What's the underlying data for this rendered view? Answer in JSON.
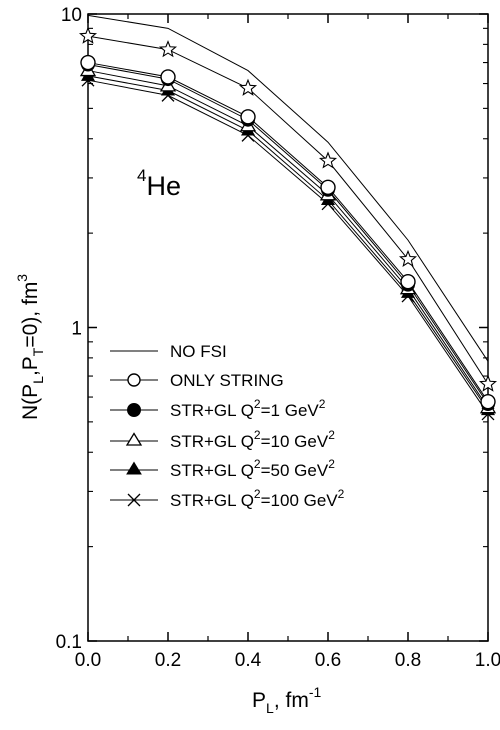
{
  "chart_data": {
    "type": "line",
    "x": [
      0.0,
      0.2,
      0.4,
      0.6,
      0.8,
      1.0
    ],
    "xlim": [
      0.0,
      1.0
    ],
    "ylim": [
      0.1,
      10
    ],
    "yscale": "log",
    "x_ticks": [
      "0.0",
      "0.2",
      "0.4",
      "0.6",
      "0.8",
      "1.0"
    ],
    "y_ticks": [
      "0.1",
      "1",
      "10"
    ],
    "xlabel": {
      "main": "P",
      "sub": "L",
      "tail": ", fm",
      "sup": "-1"
    },
    "ylabel": {
      "p1": "N(P",
      "s1": "L",
      "p2": ",P",
      "s2": "T",
      "p3": "=0), fm",
      "sup": "3"
    },
    "annotation": {
      "sup": "4",
      "text": "He"
    },
    "legend_position": "bottom-left",
    "series": [
      {
        "label": {
          "text": "NO FSI",
          "sup": "",
          "tail": ""
        },
        "marker": "none",
        "values": [
          9.9,
          9.0,
          6.6,
          3.9,
          1.9,
          0.78
        ]
      },
      {
        "label": {
          "text": "ONLY STRING",
          "sup": "",
          "tail": ""
        },
        "marker": "open-circle",
        "values": [
          7.0,
          6.3,
          4.7,
          2.8,
          1.4,
          0.58
        ]
      },
      {
        "label": {
          "text": "STR+GL Q",
          "sup": "2",
          "tail": "=1 GeV",
          "sup2": "2"
        },
        "marker": "filled-circle",
        "values": [
          6.9,
          6.2,
          4.6,
          2.75,
          1.37,
          0.57
        ]
      },
      {
        "label": {
          "text": "STR+GL Q",
          "sup": "2",
          "tail": "=10 GeV",
          "sup2": "2"
        },
        "marker": "open-triangle",
        "values": [
          6.6,
          5.9,
          4.4,
          2.65,
          1.33,
          0.555
        ]
      },
      {
        "label": {
          "text": "STR+GL Q",
          "sup": "2",
          "tail": "=50 GeV",
          "sup2": "2"
        },
        "marker": "filled-triangle",
        "values": [
          6.35,
          5.7,
          4.25,
          2.55,
          1.29,
          0.545
        ]
      },
      {
        "label": {
          "text": "STR+GL Q",
          "sup": "2",
          "tail": "=100 GeV",
          "sup2": "2"
        },
        "marker": "cross",
        "values": [
          6.15,
          5.5,
          4.1,
          2.48,
          1.26,
          0.53
        ]
      }
    ],
    "extra_series": {
      "label": "",
      "marker": "open-star",
      "values": [
        8.5,
        7.7,
        5.8,
        3.4,
        1.65,
        0.66
      ]
    }
  }
}
